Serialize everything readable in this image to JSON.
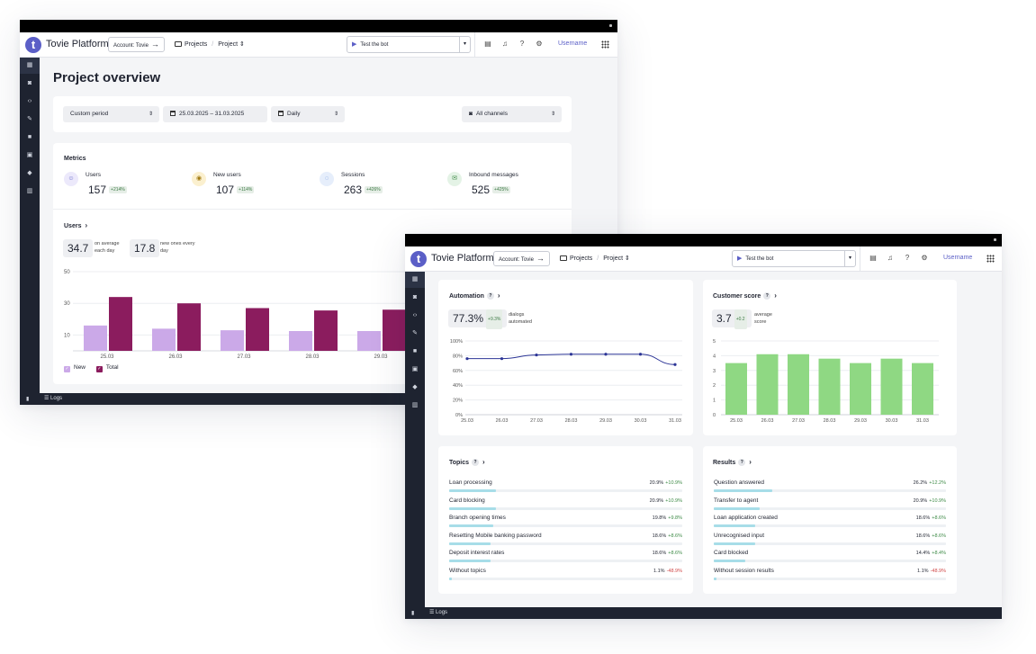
{
  "common": {
    "brand": "Tovie Platform",
    "logo_letter": "t",
    "account_label": "Account: Tovie",
    "breadcrumb_projects": "Projects",
    "breadcrumb_project": "Project",
    "bot_select": "Test the bot",
    "username": "Username",
    "logs": "Logs"
  },
  "colors": {
    "accent": "#5b5fc7",
    "sidebar": "#1e2330",
    "bar_new": "#cba9e8",
    "bar_total": "#8b1c5e",
    "bar_score": "#8fd883",
    "line_automation": "#2c3596",
    "progress": "#a7dde8"
  },
  "overview": {
    "title": "Project overview",
    "filters": {
      "period": "Custom period",
      "date_range": "25.03.2025 – 31.03.2025",
      "granularity": "Daily",
      "channels": "All channels"
    },
    "metrics_title": "Metrics",
    "metrics": [
      {
        "label": "Users",
        "value": "157",
        "delta": "+214%",
        "icon": "users-icon",
        "tint": "#ece9fb",
        "ink": "#5b5fc7"
      },
      {
        "label": "New users",
        "value": "107",
        "delta": "+114%",
        "icon": "new-user-icon",
        "tint": "#fbf0cf",
        "ink": "#a07a10"
      },
      {
        "label": "Sessions",
        "value": "263",
        "delta": "+426%",
        "icon": "chat-icon",
        "tint": "#e6eefb",
        "ink": "#3b6fd1"
      },
      {
        "label": "Inbound messages",
        "value": "525",
        "delta": "+425%",
        "icon": "mail-icon",
        "tint": "#e4f3e6",
        "ink": "#3d8a46"
      }
    ],
    "users_title": "Users",
    "users_avg": {
      "value": "34.7",
      "note_line1": "on average",
      "note_line2": "each day"
    },
    "users_new": {
      "value": "17.8",
      "note_line1": "new ones every",
      "note_line2": "day"
    },
    "legend": {
      "new": "New",
      "total": "Total"
    }
  },
  "results_window": {
    "automation": {
      "title": "Automation",
      "value": "77.3%",
      "delta": "+9.3%",
      "note_line1": "dialogs",
      "note_line2": "automated"
    },
    "customer_score": {
      "title": "Customer score",
      "value": "3.7",
      "delta": "+0.2",
      "note_line1": "average",
      "note_line2": "score"
    },
    "topics": {
      "title": "Topics",
      "items": [
        {
          "label": "Loan processing",
          "pct": "20.9%",
          "delta": "+10.9%",
          "dir": "up",
          "fraction": 0.209
        },
        {
          "label": "Card blocking",
          "pct": "20.9%",
          "delta": "+10.9%",
          "dir": "up",
          "fraction": 0.209
        },
        {
          "label": "Branch opening times",
          "pct": "19.8%",
          "delta": "+9.8%",
          "dir": "up",
          "fraction": 0.198
        },
        {
          "label": "Resetting Mobile banking password",
          "pct": "18.6%",
          "delta": "+8.6%",
          "dir": "up",
          "fraction": 0.186
        },
        {
          "label": "Deposit interest rates",
          "pct": "18.6%",
          "delta": "+8.6%",
          "dir": "up",
          "fraction": 0.186
        },
        {
          "label": "Without topics",
          "pct": "1.1%",
          "delta": "-48.9%",
          "dir": "down",
          "fraction": 0.011
        }
      ]
    },
    "results": {
      "title": "Results",
      "items": [
        {
          "label": "Question answered",
          "pct": "26.2%",
          "delta": "+12.2%",
          "dir": "up",
          "fraction": 0.262
        },
        {
          "label": "Transfer to agent",
          "pct": "20.9%",
          "delta": "+10.9%",
          "dir": "up",
          "fraction": 0.209
        },
        {
          "label": "Loan application created",
          "pct": "18.6%",
          "delta": "+8.6%",
          "dir": "up",
          "fraction": 0.186
        },
        {
          "label": "Unrecognised input",
          "pct": "18.6%",
          "delta": "+8.6%",
          "dir": "up",
          "fraction": 0.186
        },
        {
          "label": "Card blocked",
          "pct": "14.4%",
          "delta": "+8.4%",
          "dir": "up",
          "fraction": 0.144
        },
        {
          "label": "Without session results",
          "pct": "1.1%",
          "delta": "-48.9%",
          "dir": "down",
          "fraction": 0.011
        }
      ]
    }
  },
  "chart_data": [
    {
      "type": "bar",
      "title": "Users",
      "categories": [
        "25.03",
        "26.03",
        "27.03",
        "28.03",
        "29.03"
      ],
      "series": [
        {
          "name": "New",
          "values": [
            16,
            14,
            13,
            12.5,
            12.5
          ]
        },
        {
          "name": "Total",
          "values": [
            34,
            30,
            27,
            25.5,
            26
          ]
        }
      ],
      "ylim": [
        0,
        50
      ],
      "yticks": [
        10,
        30,
        50
      ],
      "grid": true,
      "legend": "bottom-left"
    },
    {
      "type": "line",
      "title": "Automation",
      "x": [
        "25.03",
        "26.03",
        "27.03",
        "28.03",
        "29.03",
        "30.03",
        "31.03"
      ],
      "series": [
        {
          "values": [
            76,
            76,
            81,
            82,
            82,
            82,
            68
          ]
        }
      ],
      "ylim": [
        0,
        100
      ],
      "yticks": [
        "0%",
        "20%",
        "40%",
        "60%",
        "80%",
        "100%"
      ],
      "grid": true
    },
    {
      "type": "bar",
      "title": "Customer score",
      "categories": [
        "25.03",
        "26.03",
        "27.03",
        "28.03",
        "29.03",
        "30.03",
        "31.03"
      ],
      "values": [
        3.5,
        4.1,
        4.1,
        3.8,
        3.5,
        3.8,
        3.5
      ],
      "ylim": [
        0,
        5
      ],
      "yticks": [
        "0",
        "1",
        "2",
        "3",
        "4",
        "5"
      ],
      "grid": true
    }
  ]
}
